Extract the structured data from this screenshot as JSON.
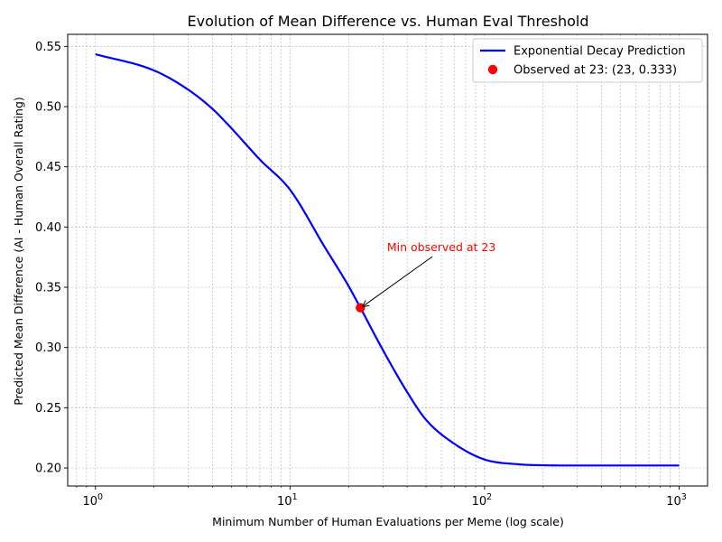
{
  "chart_data": {
    "type": "line",
    "title": "Evolution of Mean Difference vs. Human Eval Threshold",
    "xlabel": "Minimum Number of Human Evaluations per Meme (log scale)",
    "ylabel": "Predicted Mean Difference (AI - Human Overall Rating)",
    "xscale": "log",
    "xlim": [
      0.72,
      1400
    ],
    "ylim": [
      0.185,
      0.56
    ],
    "x_ticks": [
      {
        "value": 1,
        "base": "10",
        "exp": "0"
      },
      {
        "value": 10,
        "base": "10",
        "exp": "1"
      },
      {
        "value": 100,
        "base": "10",
        "exp": "2"
      },
      {
        "value": 1000,
        "base": "10",
        "exp": "3"
      }
    ],
    "y_ticks": [
      {
        "value": 0.2,
        "label": "0.20"
      },
      {
        "value": 0.25,
        "label": "0.25"
      },
      {
        "value": 0.3,
        "label": "0.30"
      },
      {
        "value": 0.35,
        "label": "0.35"
      },
      {
        "value": 0.4,
        "label": "0.40"
      },
      {
        "value": 0.45,
        "label": "0.45"
      },
      {
        "value": 0.5,
        "label": "0.50"
      },
      {
        "value": 0.55,
        "label": "0.55"
      }
    ],
    "grid": true,
    "legend_position": "top-right",
    "series": [
      {
        "name": "Exponential Decay Prediction",
        "type": "line",
        "color": "#0000ff",
        "x": [
          1,
          2,
          3,
          4,
          5,
          7,
          10,
          15,
          20,
          23,
          30,
          40,
          50,
          70,
          100,
          150,
          200,
          300,
          500,
          1000
        ],
        "y": [
          0.5435,
          0.53,
          0.514,
          0.498,
          0.482,
          0.456,
          0.431,
          0.384,
          0.351,
          0.333,
          0.298,
          0.263,
          0.24,
          0.22,
          0.207,
          0.203,
          0.2022,
          0.202,
          0.202,
          0.202
        ]
      },
      {
        "name": "Observed at 23: (23, 0.333)",
        "type": "scatter",
        "color": "#ff0000",
        "x": [
          23
        ],
        "y": [
          0.333
        ]
      }
    ],
    "annotations": [
      {
        "text": "Min observed at 23",
        "x": 23,
        "y": 0.333,
        "text_x": 60,
        "text_y": 0.383,
        "color": "#ff0000"
      }
    ]
  }
}
